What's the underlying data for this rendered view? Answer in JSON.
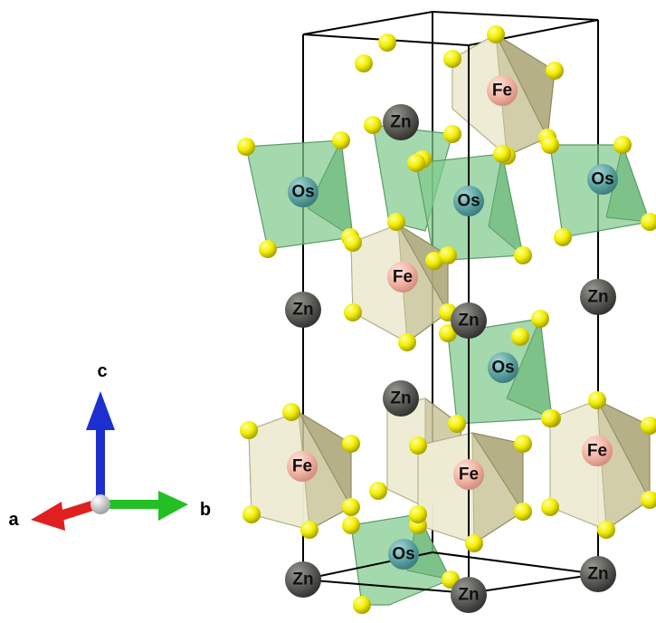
{
  "axes": {
    "a_label": "a",
    "b_label": "b",
    "c_label": "c",
    "colors": {
      "a": "#e02020",
      "b": "#22c022",
      "c": "#1e2fd0"
    }
  },
  "atoms": {
    "os_label": "Os",
    "fe_label": "Fe",
    "zn_label": "Zn"
  },
  "colors": {
    "os_polyhedron": "#7fca8c",
    "fe_polyhedron": "#c9c59a",
    "zn_atom": "#5c5c58",
    "ligand_atom": "#f2f000",
    "os_atom": "#5aa0a0",
    "fe_atom": "#f0b0a0",
    "cell_edge": "#000000"
  }
}
